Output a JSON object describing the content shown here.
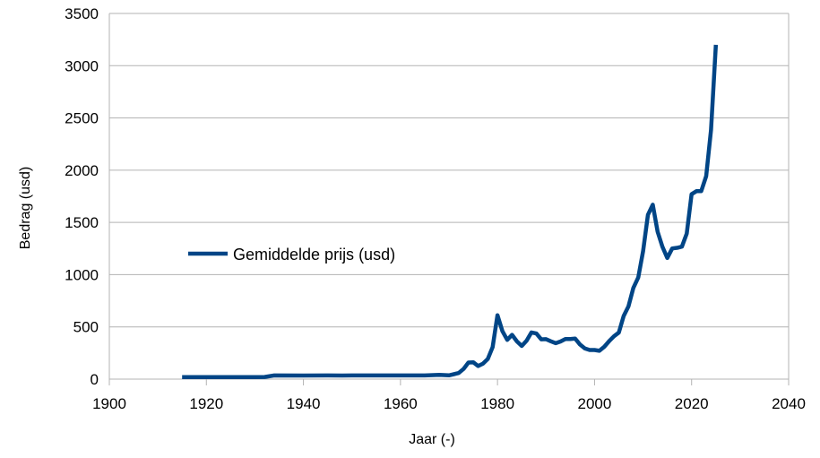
{
  "chart_data": {
    "type": "line",
    "title": "",
    "xlabel": "Jaar (-)",
    "ylabel": "Bedrag (usd)",
    "xlim": [
      1900,
      2040
    ],
    "ylim": [
      0,
      3500
    ],
    "x_ticks": [
      1900,
      1920,
      1940,
      1960,
      1980,
      2000,
      2020,
      2040
    ],
    "y_ticks": [
      0,
      500,
      1000,
      1500,
      2000,
      2500,
      3000,
      3500
    ],
    "grid": "horizontal",
    "legend_position": "left-middle",
    "colors": {
      "series": "#004586",
      "grid": "#b3b3b3",
      "axis": "#b3b3b3"
    },
    "series": [
      {
        "name": "Gemiddelde prijs (usd)",
        "x": [
          1915,
          1920,
          1925,
          1930,
          1932,
          1934,
          1940,
          1945,
          1948,
          1950,
          1955,
          1960,
          1965,
          1968,
          1970,
          1972,
          1973,
          1974,
          1975,
          1976,
          1977,
          1978,
          1979,
          1980,
          1981,
          1982,
          1983,
          1984,
          1985,
          1986,
          1987,
          1988,
          1989,
          1990,
          1991,
          1992,
          1993,
          1994,
          1995,
          1996,
          1997,
          1998,
          1999,
          2000,
          2001,
          2002,
          2003,
          2004,
          2005,
          2006,
          2007,
          2008,
          2009,
          2010,
          2011,
          2012,
          2013,
          2014,
          2015,
          2016,
          2017,
          2018,
          2019,
          2020,
          2021,
          2022,
          2023,
          2024,
          2025
        ],
        "y": [
          19,
          20,
          20,
          20,
          21,
          35,
          34,
          35,
          34,
          35,
          35,
          35,
          35,
          40,
          36,
          58,
          97,
          159,
          161,
          125,
          148,
          193,
          306,
          612,
          460,
          376,
          424,
          361,
          317,
          368,
          447,
          437,
          381,
          383,
          362,
          344,
          360,
          384,
          384,
          388,
          331,
          294,
          279,
          279,
          271,
          310,
          364,
          410,
          445,
          604,
          697,
          872,
          973,
          1225,
          1572,
          1669,
          1411,
          1266,
          1160,
          1251,
          1257,
          1268,
          1393,
          1770,
          1799,
          1800,
          1943,
          2386,
          3200
        ]
      }
    ]
  }
}
